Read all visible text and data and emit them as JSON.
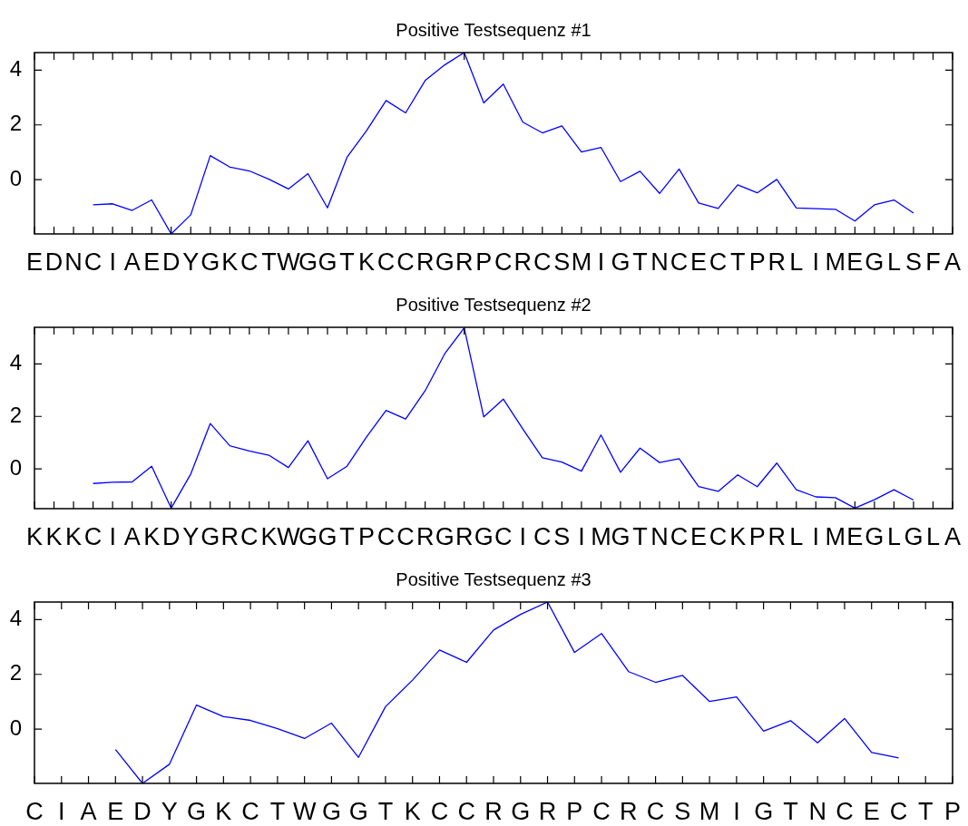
{
  "chart_data": [
    {
      "type": "line",
      "title": "Positive Testsequenz #1",
      "categories": [
        "E",
        "D",
        "N",
        "C",
        "I",
        "A",
        "E",
        "D",
        "Y",
        "G",
        "K",
        "C",
        "T",
        "W",
        "G",
        "G",
        "T",
        "K",
        "C",
        "C",
        "R",
        "G",
        "R",
        "P",
        "C",
        "R",
        "C",
        "S",
        "M",
        "I",
        "G",
        "T",
        "N",
        "C",
        "E",
        "C",
        "T",
        "P",
        "R",
        "L",
        "I",
        "M",
        "E",
        "G",
        "L",
        "S",
        "F",
        "A"
      ],
      "values": [
        null,
        null,
        null,
        -0.92,
        -0.88,
        -1.12,
        -0.74,
        -1.98,
        -1.28,
        0.88,
        0.46,
        0.32,
        0.02,
        -0.34,
        0.22,
        -1.03,
        0.82,
        1.79,
        2.89,
        2.44,
        3.62,
        4.19,
        4.64,
        2.8,
        3.49,
        2.1,
        1.71,
        1.96,
        1.01,
        1.18,
        -0.07,
        0.31,
        -0.5,
        0.39,
        -0.85,
        -1.05,
        -0.19,
        -0.48,
        0.01,
        -1.03,
        -1.06,
        -1.08,
        -1.51,
        -0.92,
        -0.74,
        -1.22,
        null,
        null
      ],
      "color": "#0000ff",
      "ylim": [
        -1.98,
        4.64
      ],
      "yticks": [
        0,
        2,
        4
      ]
    },
    {
      "type": "line",
      "title": "Positive Testsequenz #2",
      "categories": [
        "K",
        "K",
        "K",
        "C",
        "I",
        "A",
        "K",
        "D",
        "Y",
        "G",
        "R",
        "C",
        "K",
        "W",
        "G",
        "G",
        "T",
        "P",
        "C",
        "C",
        "R",
        "G",
        "R",
        "G",
        "C",
        "I",
        "C",
        "S",
        "I",
        "M",
        "G",
        "T",
        "N",
        "C",
        "E",
        "C",
        "K",
        "P",
        "R",
        "L",
        "I",
        "M",
        "E",
        "G",
        "L",
        "G",
        "L",
        "A"
      ],
      "values": [
        null,
        null,
        null,
        -0.56,
        -0.51,
        -0.5,
        0.1,
        -1.5,
        -0.2,
        1.73,
        0.88,
        0.68,
        0.52,
        0.05,
        1.07,
        -0.38,
        0.1,
        1.22,
        2.23,
        1.9,
        2.98,
        4.39,
        5.38,
        1.98,
        2.66,
        1.52,
        0.42,
        0.26,
        -0.09,
        1.29,
        -0.13,
        0.79,
        0.24,
        0.39,
        -0.68,
        -0.86,
        -0.23,
        -0.68,
        0.22,
        -0.8,
        -1.07,
        -1.1,
        -1.5,
        -1.18,
        -0.8,
        -1.19,
        null,
        null
      ],
      "color": "#0000ff",
      "ylim": [
        -1.52,
        5.4
      ],
      "yticks": [
        0,
        2,
        4
      ]
    },
    {
      "type": "line",
      "title": "Positive Testsequenz #3",
      "categories": [
        "C",
        "I",
        "A",
        "E",
        "D",
        "Y",
        "G",
        "K",
        "C",
        "T",
        "W",
        "G",
        "G",
        "T",
        "K",
        "C",
        "C",
        "R",
        "G",
        "R",
        "P",
        "C",
        "R",
        "C",
        "S",
        "M",
        "I",
        "G",
        "T",
        "N",
        "C",
        "E",
        "C",
        "T",
        "P"
      ],
      "values": [
        null,
        null,
        null,
        -0.74,
        -1.98,
        -1.28,
        0.88,
        0.46,
        0.32,
        0.02,
        -0.34,
        0.22,
        -1.03,
        0.82,
        1.79,
        2.89,
        2.44,
        3.62,
        4.19,
        4.64,
        2.8,
        3.49,
        2.1,
        1.71,
        1.96,
        1.01,
        1.18,
        -0.07,
        0.31,
        -0.5,
        0.39,
        -0.85,
        -1.05,
        null,
        null
      ],
      "color": "#0000ff",
      "ylim": [
        -1.98,
        4.64
      ],
      "yticks": [
        0,
        2,
        4
      ]
    }
  ]
}
